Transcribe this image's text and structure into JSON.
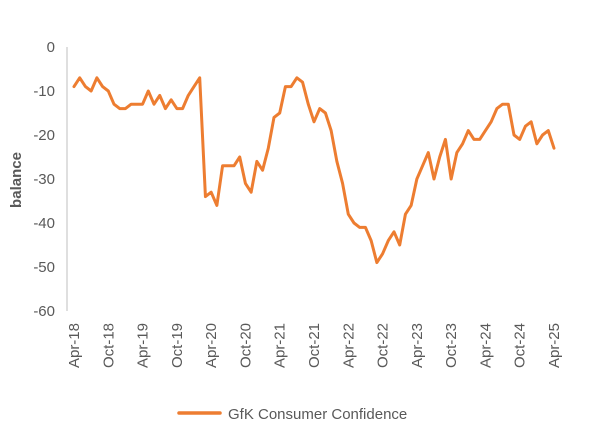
{
  "chart_data": {
    "type": "line",
    "title": "",
    "xlabel": "",
    "ylabel": "balance",
    "ylim": [
      -60,
      0
    ],
    "yticks": [
      0,
      -10,
      -20,
      -30,
      -40,
      -50,
      -60
    ],
    "grid": false,
    "legend_position": "bottom",
    "x_tick_labels": [
      "Apr-18",
      "Oct-18",
      "Apr-19",
      "Oct-19",
      "Apr-20",
      "Oct-20",
      "Apr-21",
      "Oct-21",
      "Apr-22",
      "Oct-22",
      "Apr-23",
      "Oct-23",
      "Apr-24",
      "Oct-24",
      "Apr-25"
    ],
    "x": [
      "Apr-18",
      "May-18",
      "Jun-18",
      "Jul-18",
      "Aug-18",
      "Sep-18",
      "Oct-18",
      "Nov-18",
      "Dec-18",
      "Jan-19",
      "Feb-19",
      "Mar-19",
      "Apr-19",
      "May-19",
      "Jun-19",
      "Jul-19",
      "Aug-19",
      "Sep-19",
      "Oct-19",
      "Nov-19",
      "Dec-19",
      "Jan-20",
      "Feb-20",
      "Mar-20",
      "Apr-20",
      "May-20",
      "Jun-20",
      "Jul-20",
      "Aug-20",
      "Sep-20",
      "Oct-20",
      "Nov-20",
      "Dec-20",
      "Jan-21",
      "Feb-21",
      "Mar-21",
      "Apr-21",
      "May-21",
      "Jun-21",
      "Jul-21",
      "Aug-21",
      "Sep-21",
      "Oct-21",
      "Nov-21",
      "Dec-21",
      "Jan-22",
      "Feb-22",
      "Mar-22",
      "Apr-22",
      "May-22",
      "Jun-22",
      "Jul-22",
      "Aug-22",
      "Sep-22",
      "Oct-22",
      "Nov-22",
      "Dec-22",
      "Jan-23",
      "Feb-23",
      "Mar-23",
      "Apr-23",
      "May-23",
      "Jun-23",
      "Jul-23",
      "Aug-23",
      "Sep-23",
      "Oct-23",
      "Nov-23",
      "Dec-23",
      "Jan-24",
      "Feb-24",
      "Mar-24",
      "Apr-24",
      "May-24",
      "Jun-24",
      "Jul-24",
      "Aug-24",
      "Sep-24",
      "Oct-24",
      "Nov-24",
      "Dec-24",
      "Jan-25",
      "Feb-25",
      "Mar-25",
      "Apr-25"
    ],
    "series": [
      {
        "name": "GfK Consumer Confidence",
        "color": "#ED7D31",
        "values": [
          -9,
          -7,
          -9,
          -10,
          -7,
          -9,
          -10,
          -13,
          -14,
          -14,
          -13,
          -13,
          -13,
          -10,
          -13,
          -11,
          -14,
          -12,
          -14,
          -14,
          -11,
          -9,
          -7,
          -34,
          -33,
          -36,
          -27,
          -27,
          -27,
          -25,
          -31,
          -33,
          -26,
          -28,
          -23,
          -16,
          -15,
          -9,
          -9,
          -7,
          -8,
          -13,
          -17,
          -14,
          -15,
          -19,
          -26,
          -31,
          -38,
          -40,
          -41,
          -41,
          -44,
          -49,
          -47,
          -44,
          -42,
          -45,
          -38,
          -36,
          -30,
          -27,
          -24,
          -30,
          -25,
          -21,
          -30,
          -24,
          -22,
          -19,
          -21,
          -21,
          -19,
          -17,
          -14,
          -13,
          -13,
          -20,
          -21,
          -18,
          -17,
          -22,
          -20,
          -19,
          -23
        ]
      }
    ]
  }
}
